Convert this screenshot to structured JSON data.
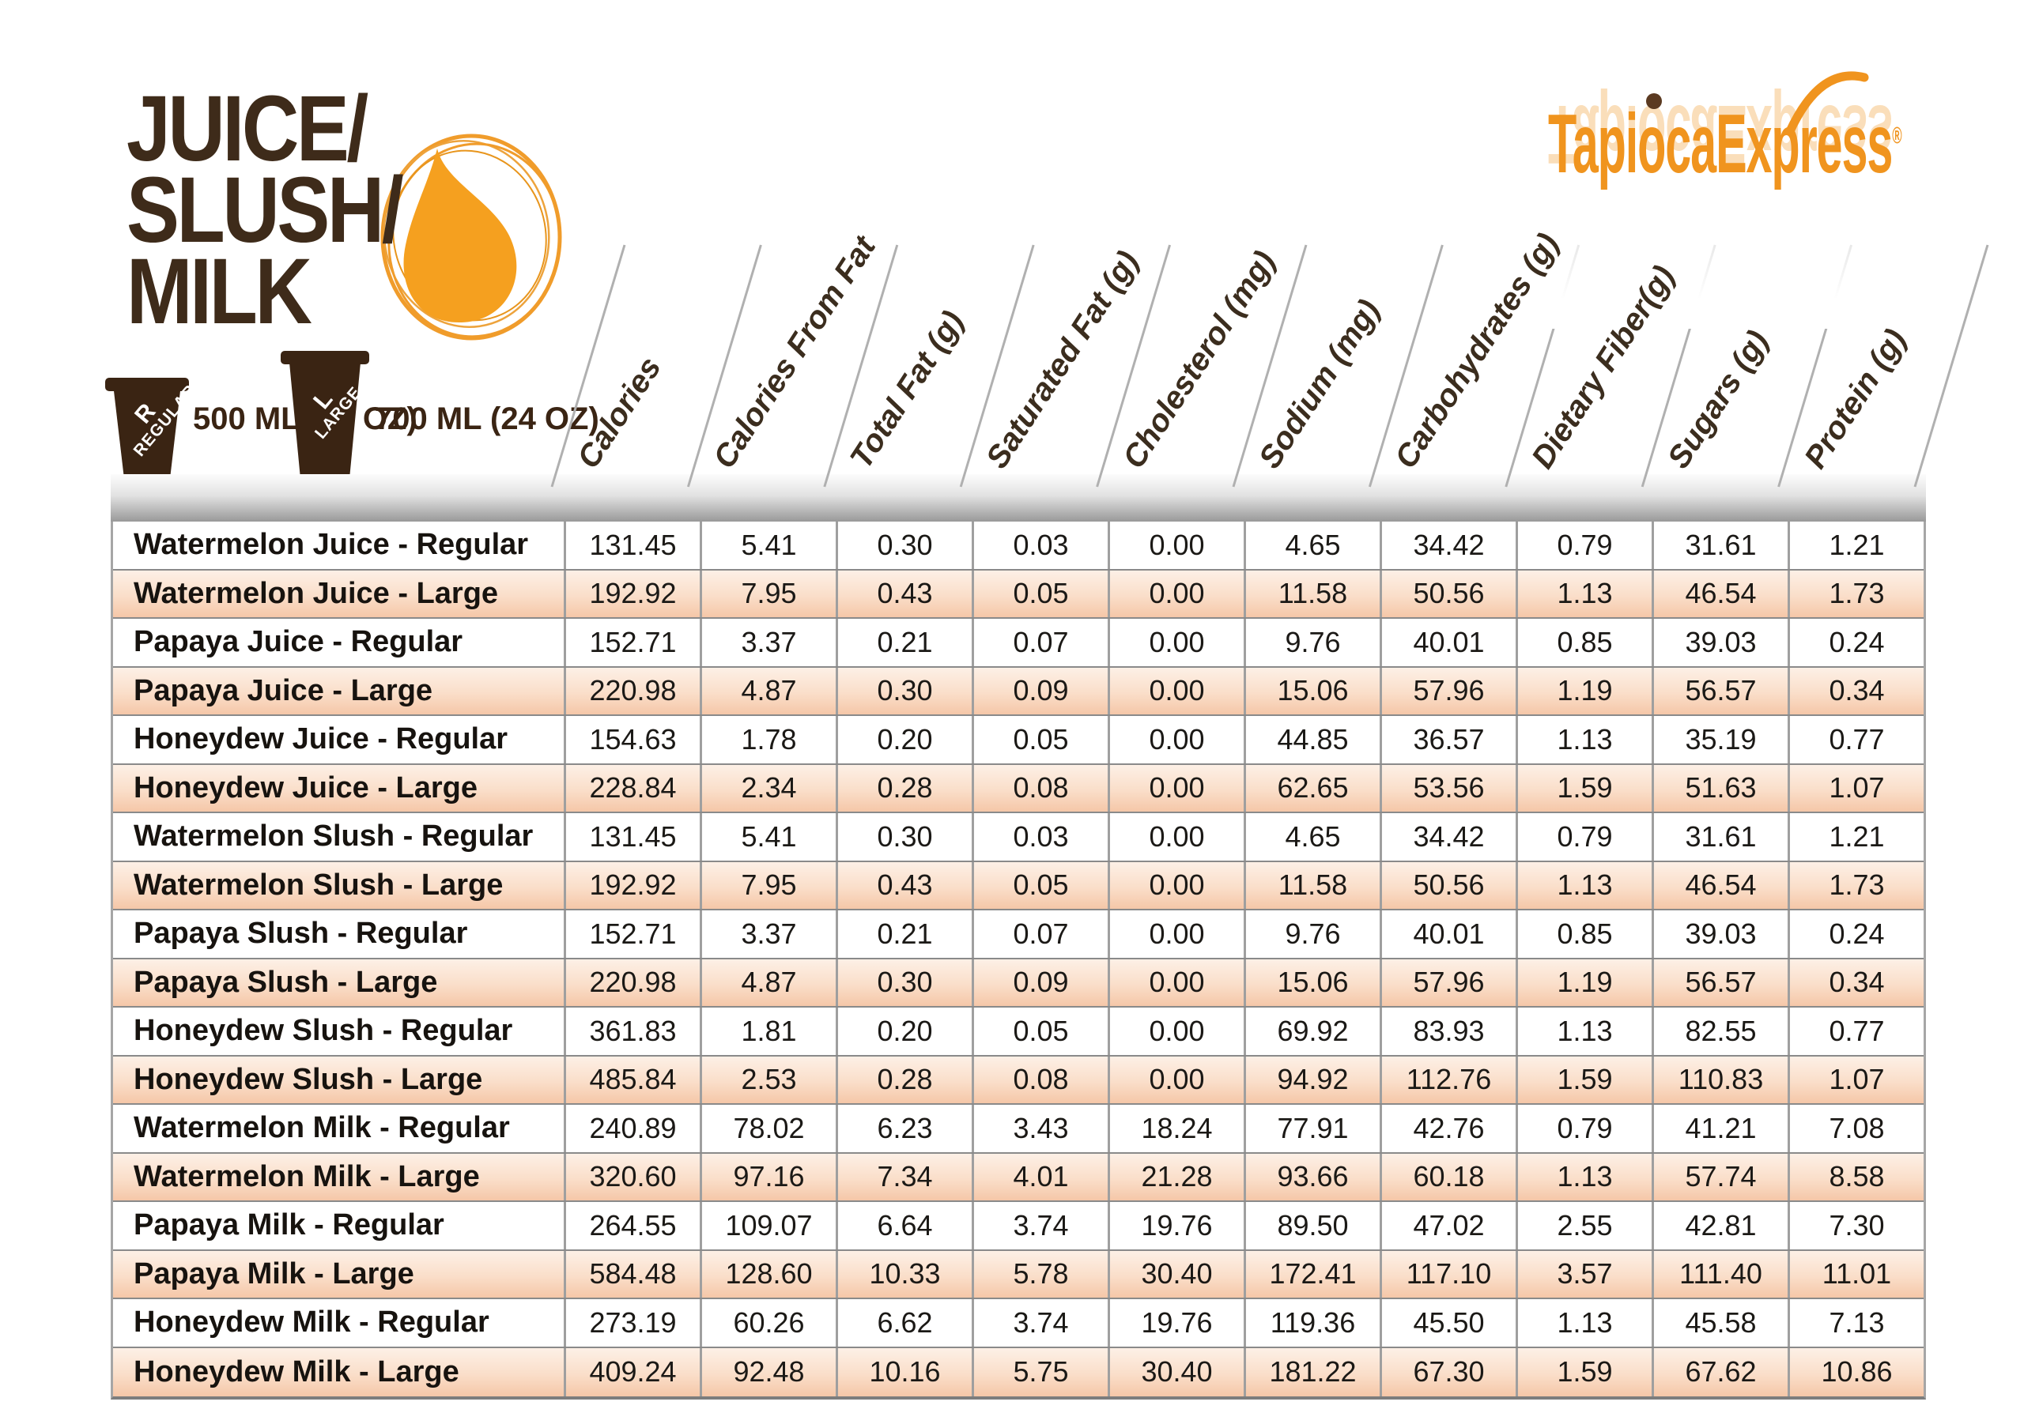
{
  "title": {
    "line1": "JUICE/",
    "line2": "SLUSH/",
    "line3": "MILK"
  },
  "brand": {
    "name": "TapiocaExpress",
    "registered": "®"
  },
  "sizes": [
    {
      "letter": "R",
      "word": "REGULAR",
      "volume": "500 ML (16 OZ)"
    },
    {
      "letter": "L",
      "word": "LARGE",
      "volume": "700 ML (24 OZ)"
    }
  ],
  "colors": {
    "accent_orange": "#F0941E",
    "brand_brown": "#3E2B1A",
    "cup_brown": "#3A2413",
    "row_peach_top": "#FDF0E6",
    "row_peach_bottom": "#F5C7A8",
    "grid_gray": "#8A8A8A"
  },
  "table": {
    "columns": [
      "Calories",
      "Calories From Fat",
      "Total Fat (g)",
      "Saturated Fat (g)",
      "Cholesterol (mg)",
      "Sodium (mg)",
      "Carbohydrates (g)",
      "Dietary Fiber(g)",
      "Sugars (g)",
      "Protein (g)"
    ],
    "rows": [
      {
        "name": "Watermelon Juice - Regular",
        "values": [
          "131.45",
          "5.41",
          "0.30",
          "0.03",
          "0.00",
          "4.65",
          "34.42",
          "0.79",
          "31.61",
          "1.21"
        ]
      },
      {
        "name": "Watermelon Juice - Large",
        "values": [
          "192.92",
          "7.95",
          "0.43",
          "0.05",
          "0.00",
          "11.58",
          "50.56",
          "1.13",
          "46.54",
          "1.73"
        ]
      },
      {
        "name": "Papaya Juice - Regular",
        "values": [
          "152.71",
          "3.37",
          "0.21",
          "0.07",
          "0.00",
          "9.76",
          "40.01",
          "0.85",
          "39.03",
          "0.24"
        ]
      },
      {
        "name": "Papaya Juice - Large",
        "values": [
          "220.98",
          "4.87",
          "0.30",
          "0.09",
          "0.00",
          "15.06",
          "57.96",
          "1.19",
          "56.57",
          "0.34"
        ]
      },
      {
        "name": "Honeydew Juice - Regular",
        "values": [
          "154.63",
          "1.78",
          "0.20",
          "0.05",
          "0.00",
          "44.85",
          "36.57",
          "1.13",
          "35.19",
          "0.77"
        ]
      },
      {
        "name": "Honeydew Juice - Large",
        "values": [
          "228.84",
          "2.34",
          "0.28",
          "0.08",
          "0.00",
          "62.65",
          "53.56",
          "1.59",
          "51.63",
          "1.07"
        ]
      },
      {
        "name": "Watermelon Slush - Regular",
        "values": [
          "131.45",
          "5.41",
          "0.30",
          "0.03",
          "0.00",
          "4.65",
          "34.42",
          "0.79",
          "31.61",
          "1.21"
        ]
      },
      {
        "name": "Watermelon Slush - Large",
        "values": [
          "192.92",
          "7.95",
          "0.43",
          "0.05",
          "0.00",
          "11.58",
          "50.56",
          "1.13",
          "46.54",
          "1.73"
        ]
      },
      {
        "name": "Papaya Slush - Regular",
        "values": [
          "152.71",
          "3.37",
          "0.21",
          "0.07",
          "0.00",
          "9.76",
          "40.01",
          "0.85",
          "39.03",
          "0.24"
        ]
      },
      {
        "name": "Papaya Slush - Large",
        "values": [
          "220.98",
          "4.87",
          "0.30",
          "0.09",
          "0.00",
          "15.06",
          "57.96",
          "1.19",
          "56.57",
          "0.34"
        ]
      },
      {
        "name": "Honeydew Slush - Regular",
        "values": [
          "361.83",
          "1.81",
          "0.20",
          "0.05",
          "0.00",
          "69.92",
          "83.93",
          "1.13",
          "82.55",
          "0.77"
        ]
      },
      {
        "name": "Honeydew Slush - Large",
        "values": [
          "485.84",
          "2.53",
          "0.28",
          "0.08",
          "0.00",
          "94.92",
          "112.76",
          "1.59",
          "110.83",
          "1.07"
        ]
      },
      {
        "name": "Watermelon Milk - Regular",
        "values": [
          "240.89",
          "78.02",
          "6.23",
          "3.43",
          "18.24",
          "77.91",
          "42.76",
          "0.79",
          "41.21",
          "7.08"
        ]
      },
      {
        "name": "Watermelon Milk - Large",
        "values": [
          "320.60",
          "97.16",
          "7.34",
          "4.01",
          "21.28",
          "93.66",
          "60.18",
          "1.13",
          "57.74",
          "8.58"
        ]
      },
      {
        "name": "Papaya Milk - Regular",
        "values": [
          "264.55",
          "109.07",
          "6.64",
          "3.74",
          "19.76",
          "89.50",
          "47.02",
          "2.55",
          "42.81",
          "7.30"
        ]
      },
      {
        "name": "Papaya Milk - Large",
        "values": [
          "584.48",
          "128.60",
          "10.33",
          "5.78",
          "30.40",
          "172.41",
          "117.10",
          "3.57",
          "111.40",
          "11.01"
        ]
      },
      {
        "name": "Honeydew Milk - Regular",
        "values": [
          "273.19",
          "60.26",
          "6.62",
          "3.74",
          "19.76",
          "119.36",
          "45.50",
          "1.13",
          "45.58",
          "7.13"
        ]
      },
      {
        "name": "Honeydew Milk - Large",
        "values": [
          "409.24",
          "92.48",
          "10.16",
          "5.75",
          "30.40",
          "181.22",
          "67.30",
          "1.59",
          "67.62",
          "10.86"
        ]
      }
    ]
  }
}
